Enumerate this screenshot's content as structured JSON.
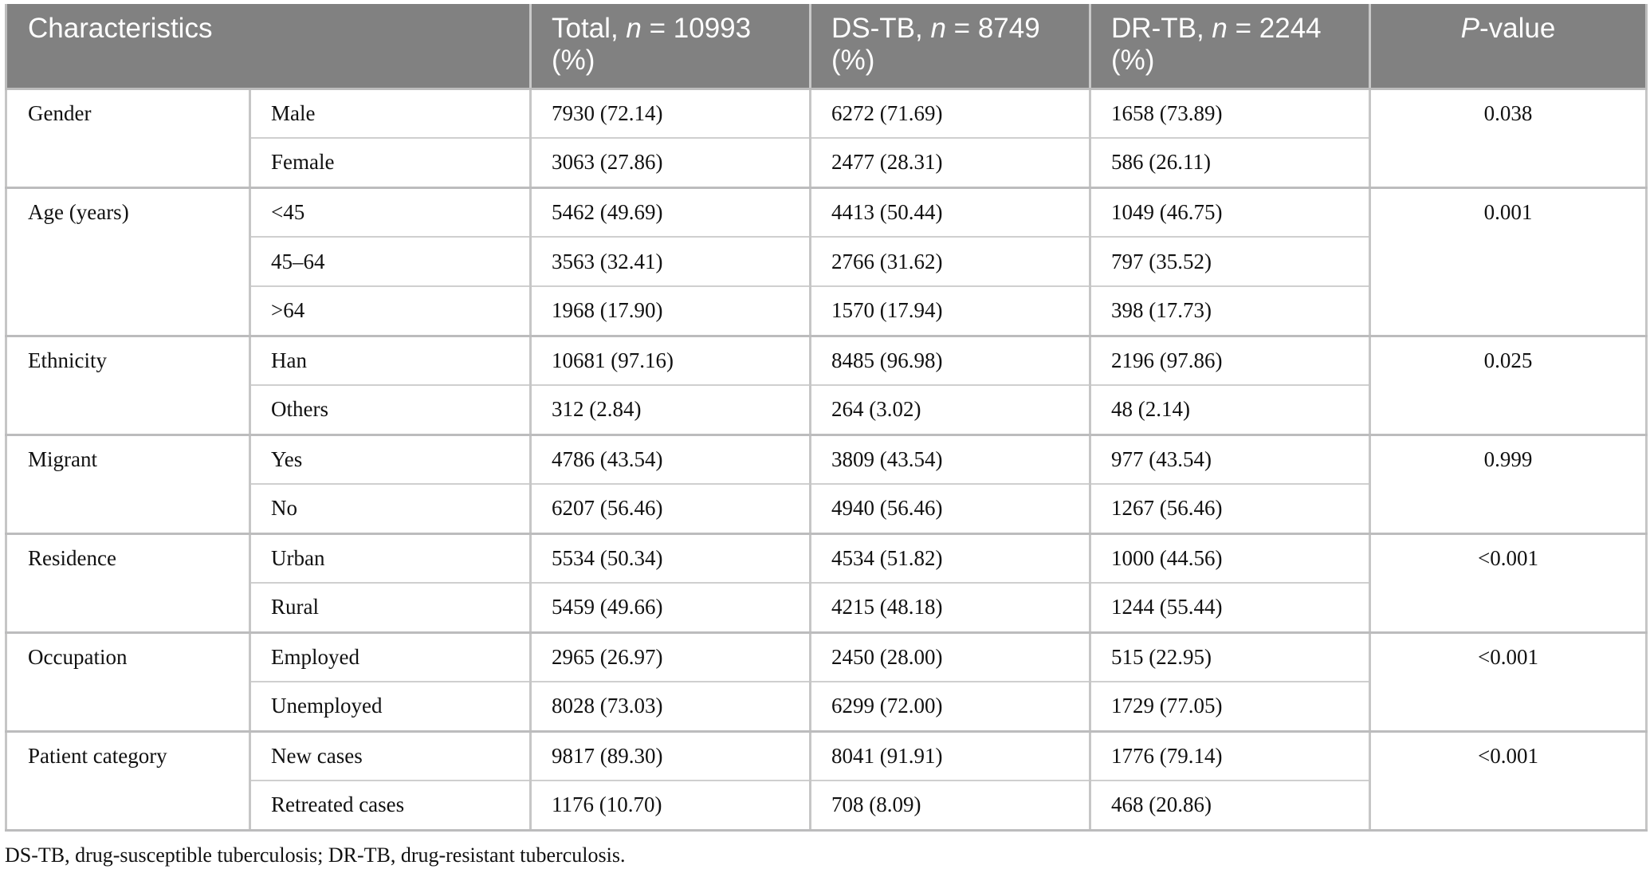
{
  "table": {
    "headers": [
      {
        "main": "Characteristics"
      },
      {
        "main": "Total, ",
        "ital": "n",
        "rest": " = 10993",
        "line2": "(%)"
      },
      {
        "main": "DS-TB, ",
        "ital": "n",
        "rest": " = 8749",
        "line2": "(%)"
      },
      {
        "main": "DR-TB, ",
        "ital": "n",
        "rest": " = 2244",
        "line2": "(%)"
      },
      {
        "ital": "P",
        "rest": "-value"
      }
    ],
    "groups": [
      {
        "name": "Gender",
        "p": "0.038",
        "rows": [
          {
            "sub": "Male",
            "total": "7930 (72.14)",
            "ds": "6272 (71.69)",
            "dr": "1658 (73.89)"
          },
          {
            "sub": "Female",
            "total": "3063 (27.86)",
            "ds": "2477 (28.31)",
            "dr": "586 (26.11)"
          }
        ]
      },
      {
        "name": "Age (years)",
        "p": "0.001",
        "rows": [
          {
            "sub": "<45",
            "total": "5462 (49.69)",
            "ds": "4413 (50.44)",
            "dr": "1049 (46.75)"
          },
          {
            "sub": "45–64",
            "total": "3563 (32.41)",
            "ds": "2766 (31.62)",
            "dr": "797 (35.52)"
          },
          {
            "sub": ">64",
            "total": "1968 (17.90)",
            "ds": "1570 (17.94)",
            "dr": "398 (17.73)"
          }
        ]
      },
      {
        "name": "Ethnicity",
        "p": "0.025",
        "rows": [
          {
            "sub": "Han",
            "total": "10681 (97.16)",
            "ds": "8485 (96.98)",
            "dr": "2196 (97.86)"
          },
          {
            "sub": "Others",
            "total": "312 (2.84)",
            "ds": "264 (3.02)",
            "dr": "48 (2.14)"
          }
        ]
      },
      {
        "name": "Migrant",
        "p": "0.999",
        "rows": [
          {
            "sub": "Yes",
            "total": "4786 (43.54)",
            "ds": "3809 (43.54)",
            "dr": "977 (43.54)"
          },
          {
            "sub": "No",
            "total": "6207 (56.46)",
            "ds": "4940 (56.46)",
            "dr": "1267 (56.46)"
          }
        ]
      },
      {
        "name": "Residence",
        "p": "<0.001",
        "rows": [
          {
            "sub": "Urban",
            "total": "5534 (50.34)",
            "ds": "4534 (51.82)",
            "dr": "1000 (44.56)"
          },
          {
            "sub": "Rural",
            "total": "5459 (49.66)",
            "ds": "4215 (48.18)",
            "dr": "1244 (55.44)"
          }
        ]
      },
      {
        "name": "Occupation",
        "p": "<0.001",
        "rows": [
          {
            "sub": "Employed",
            "total": "2965 (26.97)",
            "ds": "2450 (28.00)",
            "dr": "515 (22.95)"
          },
          {
            "sub": "Unemployed",
            "total": "8028 (73.03)",
            "ds": "6299 (72.00)",
            "dr": "1729 (77.05)"
          }
        ]
      },
      {
        "name": "Patient category",
        "p": "<0.001",
        "rows": [
          {
            "sub": "New cases",
            "total": "9817 (89.30)",
            "ds": "8041 (91.91)",
            "dr": "1776 (79.14)"
          },
          {
            "sub": "Retreated cases",
            "total": "1176 (10.70)",
            "ds": "708 (8.09)",
            "dr": "468 (20.86)"
          }
        ]
      }
    ]
  },
  "footnote": "DS-TB, drug-susceptible tuberculosis; DR-TB, drug-resistant tuberculosis."
}
